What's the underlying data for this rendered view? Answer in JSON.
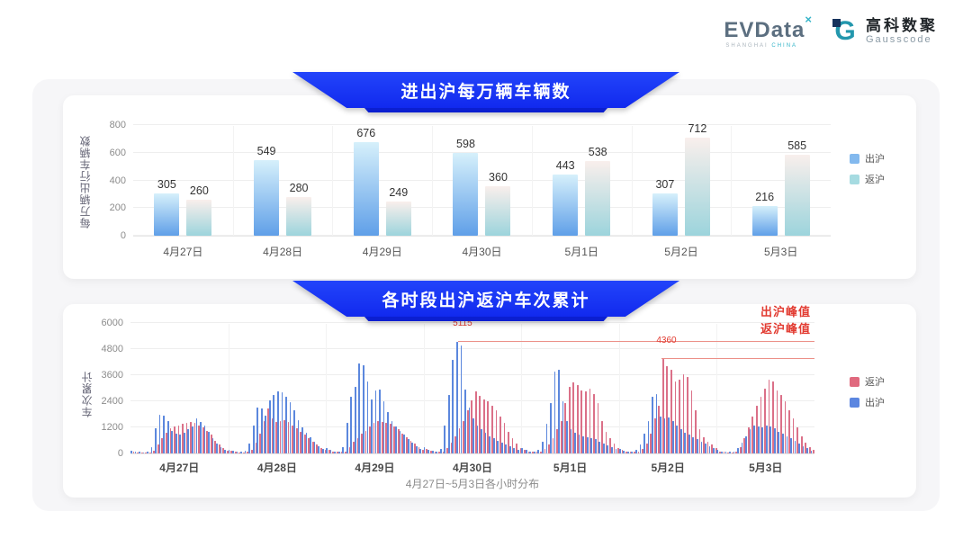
{
  "header": {
    "evdata": {
      "wordmark": "EVData",
      "sup": "×",
      "tagline_left": "SHANGHAI",
      "tagline_right": "CHINA"
    },
    "gausscode": {
      "icon_glyph": "G",
      "name_cn": "高科数聚",
      "name_en": "Gausscode"
    }
  },
  "chart_data": [
    {
      "type": "bar",
      "title": "进出沪每万辆车辆数",
      "ylabel": "每万辆出行车辆数",
      "ylim": [
        0,
        800
      ],
      "yticks": [
        0,
        200,
        400,
        600,
        800
      ],
      "grid": true,
      "legend_position": "right",
      "categories": [
        "4月27日",
        "4月28日",
        "4月29日",
        "4月30日",
        "5月1日",
        "5月2日",
        "5月3日"
      ],
      "series": [
        {
          "key": "exit-shanghai",
          "name": "出沪",
          "color_top": "#d6f0fb",
          "color_bottom": "#5f9fe8",
          "legend_color": "#83b9ee",
          "values": [
            305,
            549,
            676,
            598,
            443,
            307,
            216
          ]
        },
        {
          "key": "return-shanghai",
          "name": "返沪",
          "color_top": "#f9efec",
          "color_bottom": "#9cd4dc",
          "legend_color": "#a6dbe1",
          "values": [
            260,
            280,
            249,
            360,
            538,
            712,
            585
          ]
        }
      ],
      "legend": [
        {
          "label": "出沪",
          "color": "#83b9ee"
        },
        {
          "label": "返沪",
          "color": "#a6dbe1"
        }
      ]
    },
    {
      "type": "bar",
      "title": "各时段出沪返沪车次累计",
      "ylabel": "车次累计",
      "xlabel": "4月27日~5月3日各小时分布",
      "ylim": [
        0,
        6000
      ],
      "yticks": [
        0,
        1200,
        2400,
        3600,
        4800,
        6000
      ],
      "grid": true,
      "legend_position": "right",
      "categories": [
        "4月27日",
        "4月28日",
        "4月29日",
        "4月30日",
        "5月1日",
        "5月2日",
        "5月3日"
      ],
      "series": [
        {
          "key": "exit-shanghai",
          "name": "出沪",
          "color": "#5b87dd",
          "days": [
            [
              140,
              90,
              70,
              60,
              90,
              280,
              1150,
              1800,
              1750,
              1500,
              1050,
              900,
              850,
              950,
              1100,
              1250,
              1600,
              1450,
              1300,
              1000,
              700,
              450,
              280,
              150
            ],
            [
              180,
              120,
              90,
              80,
              110,
              450,
              1300,
              2100,
              2050,
              1750,
              2450,
              2700,
              2850,
              2800,
              2600,
              2350,
              2000,
              1550,
              1200,
              950,
              750,
              550,
              350,
              200
            ],
            [
              250,
              150,
              100,
              90,
              300,
              1400,
              2600,
              3050,
              4150,
              4050,
              3300,
              2500,
              2900,
              2950,
              2400,
              1900,
              1500,
              1250,
              1050,
              850,
              650,
              500,
              350,
              200
            ],
            [
              300,
              180,
              120,
              100,
              200,
              1300,
              2700,
              4300,
              5115,
              4950,
              2950,
              2100,
              1600,
              1300,
              1100,
              950,
              800,
              700,
              600,
              500,
              420,
              350,
              250,
              150
            ],
            [
              250,
              150,
              100,
              100,
              150,
              550,
              1350,
              2300,
              3750,
              3850,
              2400,
              1500,
              1100,
              950,
              850,
              800,
              750,
              700,
              650,
              550,
              450,
              380,
              300,
              200
            ],
            [
              200,
              130,
              100,
              100,
              150,
              400,
              900,
              1500,
              2600,
              2750,
              1700,
              1600,
              1650,
              1500,
              1300,
              1100,
              950,
              850,
              750,
              650,
              550,
              450,
              350,
              250
            ],
            [
              150,
              100,
              80,
              80,
              100,
              250,
              500,
              800,
              1100,
              1300,
              1250,
              1200,
              1300,
              1250,
              1150,
              1000,
              900,
              800,
              700,
              600,
              450,
              350,
              250,
              120
            ]
          ]
        },
        {
          "key": "return-shanghai",
          "name": "返沪",
          "color": "#db7088",
          "days": [
            [
              100,
              60,
              50,
              50,
              60,
              120,
              400,
              700,
              950,
              1150,
              1250,
              1300,
              1350,
              1400,
              1450,
              1400,
              1300,
              1200,
              1050,
              850,
              600,
              400,
              230,
              120
            ],
            [
              120,
              80,
              60,
              60,
              80,
              150,
              500,
              900,
              1500,
              2050,
              1600,
              1450,
              1500,
              1550,
              1450,
              1300,
              1150,
              1000,
              850,
              700,
              550,
              400,
              250,
              150
            ],
            [
              150,
              100,
              70,
              70,
              90,
              300,
              550,
              700,
              900,
              1050,
              1250,
              1400,
              1500,
              1450,
              1400,
              1350,
              1250,
              1100,
              900,
              750,
              600,
              450,
              300,
              150
            ],
            [
              200,
              120,
              80,
              80,
              100,
              250,
              500,
              800,
              1150,
              1500,
              2000,
              2450,
              2850,
              2650,
              2500,
              2400,
              2200,
              2000,
              1700,
              1400,
              1000,
              700,
              450,
              250
            ],
            [
              150,
              100,
              80,
              80,
              100,
              200,
              400,
              700,
              1100,
              1500,
              2300,
              3050,
              3250,
              3150,
              2900,
              2850,
              3000,
              2750,
              2300,
              1500,
              1000,
              700,
              450,
              250
            ],
            [
              150,
              100,
              80,
              80,
              100,
              200,
              450,
              900,
              1600,
              2200,
              4360,
              4000,
              3850,
              3300,
              3400,
              3650,
              3500,
              2900,
              2000,
              1100,
              750,
              550,
              400,
              250
            ],
            [
              100,
              80,
              60,
              60,
              80,
              300,
              700,
              1200,
              1700,
              2200,
              2600,
              3000,
              3400,
              3300,
              2900,
              2700,
              2400,
              2000,
              1600,
              1200,
              800,
              500,
              300,
              150
            ]
          ]
        }
      ],
      "legend": [
        {
          "label": "返沪",
          "color": "#e0697e"
        },
        {
          "label": "出沪",
          "color": "#5b86e0"
        }
      ],
      "annotations": [
        {
          "name": "出沪峰值",
          "value": 5115,
          "value_label": "5115",
          "day_index": 3,
          "hour": 8
        },
        {
          "name": "返沪峰值",
          "value": 4360,
          "value_label": "4360",
          "day_index": 5,
          "hour": 10
        }
      ]
    }
  ]
}
